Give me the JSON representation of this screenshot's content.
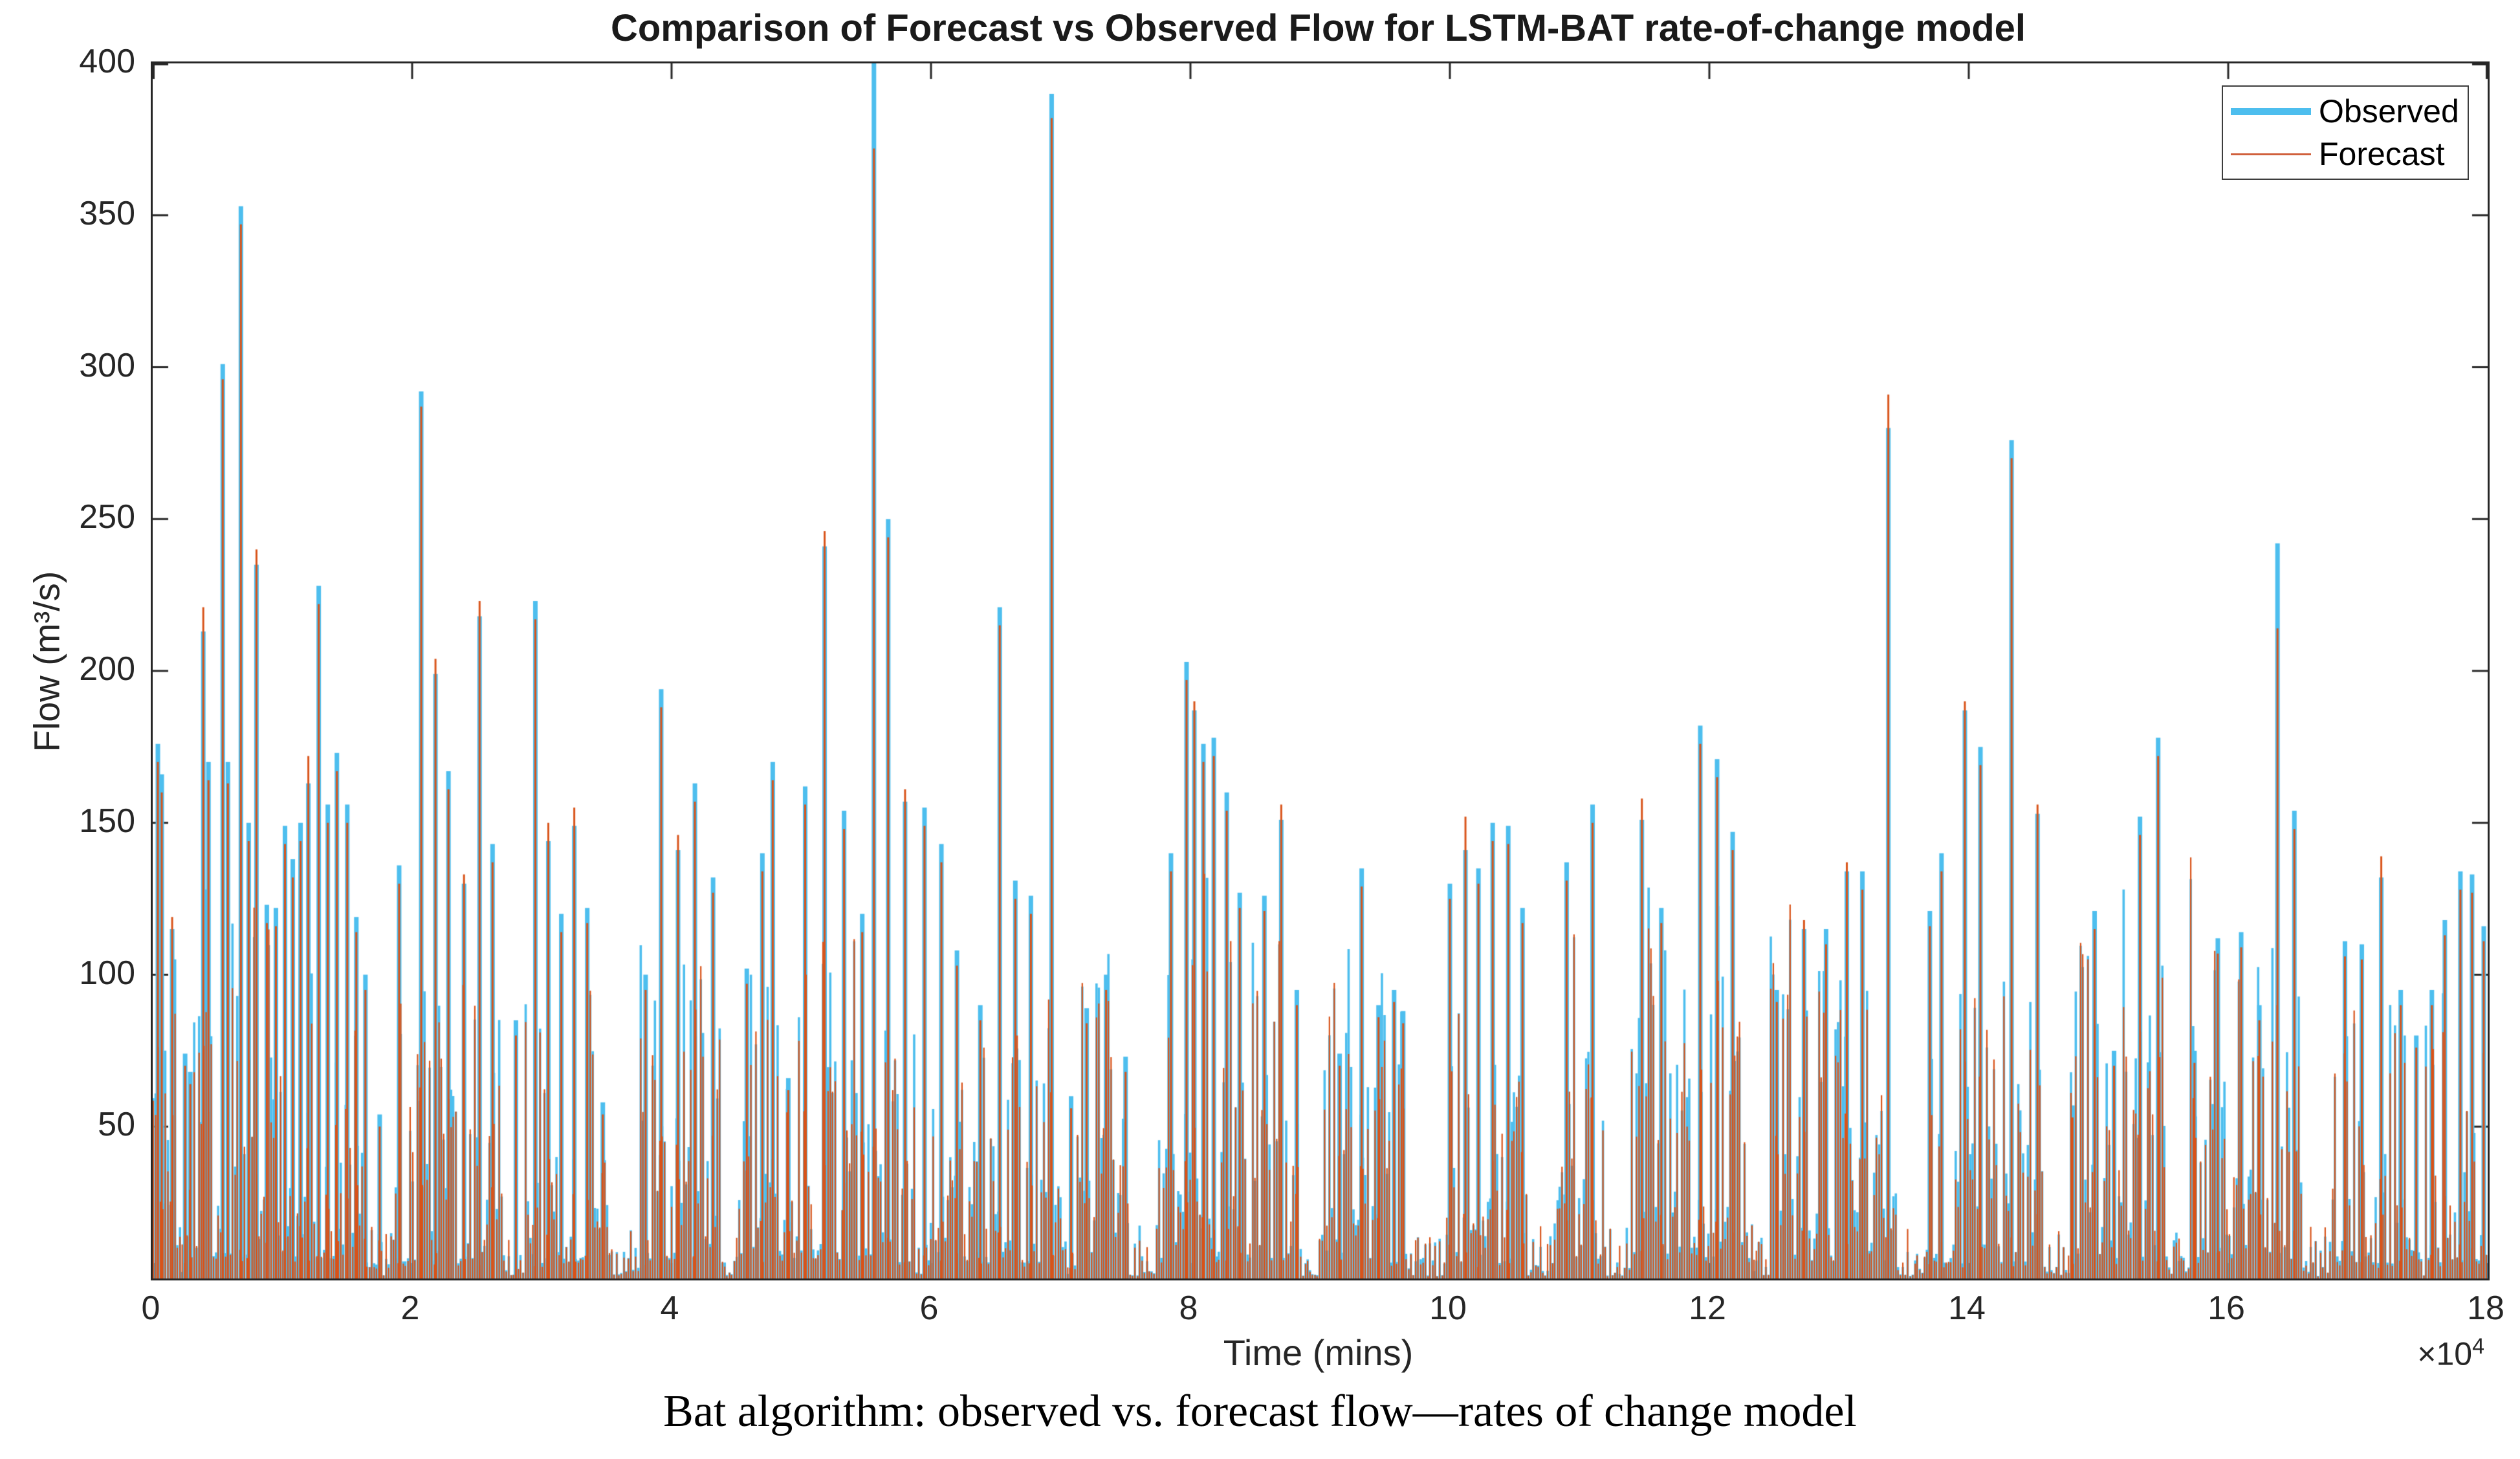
{
  "figure": {
    "caption": "Bat algorithm: observed vs. forecast flow—rates of change model"
  },
  "chart_data": {
    "type": "line",
    "title": "Comparison of Forecast vs Observed Flow for LSTM-BAT rate-of-change model",
    "xlabel": "Time (mins)",
    "ylabel": "Flow (m³/s)",
    "x_scale_base": "×10",
    "x_scale_exp": "4",
    "xlim": [
      0,
      18
    ],
    "ylim": [
      0,
      400
    ],
    "xticks": [
      0,
      2,
      4,
      6,
      8,
      10,
      12,
      14,
      16,
      18
    ],
    "yticks": [
      50,
      100,
      150,
      200,
      250,
      300,
      350,
      400
    ],
    "grid": false,
    "legend_position": "top-right",
    "legend": [
      {
        "label": "Observed",
        "color": "#4DBEEE",
        "style": "thick"
      },
      {
        "label": "Forecast",
        "color": "#D95319",
        "style": "thin"
      }
    ],
    "axis_color": "#262626",
    "series_colors": {
      "observed": "#4DBEEE",
      "forecast": "#D95319"
    },
    "x_units_note": "x values are in 10^4 minutes",
    "spikes_x_obs_fcst": [
      [
        0.04,
        176,
        170
      ],
      [
        0.07,
        166,
        160
      ],
      [
        0.15,
        115,
        119
      ],
      [
        0.25,
        74,
        70
      ],
      [
        0.29,
        68,
        64
      ],
      [
        0.39,
        213,
        221
      ],
      [
        0.43,
        170,
        164
      ],
      [
        0.54,
        301,
        296
      ],
      [
        0.58,
        170,
        163
      ],
      [
        0.68,
        353,
        347
      ],
      [
        0.74,
        150,
        144
      ],
      [
        0.8,
        235,
        240
      ],
      [
        0.88,
        123,
        117
      ],
      [
        0.95,
        122,
        116
      ],
      [
        1.02,
        149,
        143
      ],
      [
        1.08,
        138,
        132
      ],
      [
        1.14,
        150,
        144
      ],
      [
        1.2,
        163,
        172
      ],
      [
        1.28,
        228,
        222
      ],
      [
        1.35,
        156,
        150
      ],
      [
        1.42,
        173,
        167
      ],
      [
        1.5,
        156,
        150
      ],
      [
        1.57,
        119,
        114
      ],
      [
        1.64,
        100,
        95
      ],
      [
        1.75,
        54,
        50
      ],
      [
        1.9,
        136,
        130
      ],
      [
        2.07,
        292,
        287
      ],
      [
        2.18,
        199,
        204
      ],
      [
        2.28,
        167,
        161
      ],
      [
        2.4,
        130,
        133
      ],
      [
        2.52,
        218,
        223
      ],
      [
        2.62,
        143,
        137
      ],
      [
        2.8,
        85,
        80
      ],
      [
        2.95,
        223,
        217
      ],
      [
        3.05,
        144,
        150
      ],
      [
        3.15,
        120,
        114
      ],
      [
        3.25,
        149,
        155
      ],
      [
        3.35,
        122,
        117
      ],
      [
        3.47,
        58,
        54
      ],
      [
        3.8,
        100,
        95
      ],
      [
        3.92,
        194,
        188
      ],
      [
        4.05,
        141,
        146
      ],
      [
        4.18,
        163,
        157
      ],
      [
        4.32,
        132,
        127
      ],
      [
        4.58,
        102,
        97
      ],
      [
        4.7,
        140,
        134
      ],
      [
        4.78,
        170,
        164
      ],
      [
        4.9,
        66,
        62
      ],
      [
        5.03,
        162,
        156
      ],
      [
        5.18,
        241,
        246
      ],
      [
        5.33,
        154,
        148
      ],
      [
        5.47,
        120,
        114
      ],
      [
        5.56,
        400,
        372
      ],
      [
        5.67,
        250,
        244
      ],
      [
        5.8,
        157,
        161
      ],
      [
        5.95,
        155,
        149
      ],
      [
        6.08,
        143,
        137
      ],
      [
        6.2,
        108,
        103
      ],
      [
        6.38,
        90,
        85
      ],
      [
        6.53,
        221,
        215
      ],
      [
        6.65,
        131,
        125
      ],
      [
        6.77,
        126,
        120
      ],
      [
        6.93,
        390,
        382
      ],
      [
        7.08,
        60,
        56
      ],
      [
        7.2,
        89,
        84
      ],
      [
        7.35,
        100,
        95
      ],
      [
        7.5,
        73,
        68
      ],
      [
        7.85,
        140,
        134
      ],
      [
        7.97,
        203,
        197
      ],
      [
        8.03,
        187,
        190
      ],
      [
        8.1,
        176,
        170
      ],
      [
        8.18,
        178,
        172
      ],
      [
        8.28,
        160,
        154
      ],
      [
        8.38,
        127,
        122
      ],
      [
        8.57,
        126,
        121
      ],
      [
        8.7,
        151,
        156
      ],
      [
        8.82,
        95,
        90
      ],
      [
        9.15,
        74,
        70
      ],
      [
        9.32,
        135,
        129
      ],
      [
        9.45,
        90,
        86
      ],
      [
        9.57,
        95,
        91
      ],
      [
        9.64,
        88,
        84
      ],
      [
        10.0,
        130,
        125
      ],
      [
        10.12,
        141,
        152
      ],
      [
        10.22,
        135,
        130
      ],
      [
        10.33,
        150,
        144
      ],
      [
        10.45,
        149,
        143
      ],
      [
        10.56,
        122,
        117
      ],
      [
        10.9,
        137,
        131
      ],
      [
        11.1,
        156,
        150
      ],
      [
        11.48,
        151,
        158
      ],
      [
        11.63,
        122,
        117
      ],
      [
        11.93,
        182,
        176
      ],
      [
        12.06,
        171,
        165
      ],
      [
        12.18,
        147,
        141
      ],
      [
        12.52,
        95,
        91
      ],
      [
        12.73,
        115,
        118
      ],
      [
        12.9,
        115,
        110
      ],
      [
        13.06,
        134,
        137
      ],
      [
        13.18,
        134,
        128
      ],
      [
        13.38,
        280,
        291
      ],
      [
        13.7,
        121,
        116
      ],
      [
        13.79,
        140,
        134
      ],
      [
        13.97,
        187,
        190
      ],
      [
        14.09,
        175,
        169
      ],
      [
        14.33,
        276,
        270
      ],
      [
        14.53,
        153,
        156
      ],
      [
        14.8,
        57,
        53
      ],
      [
        14.97,
        121,
        115
      ],
      [
        15.12,
        75,
        70
      ],
      [
        15.32,
        152,
        146
      ],
      [
        15.46,
        178,
        172
      ],
      [
        15.74,
        75,
        71
      ],
      [
        15.92,
        112,
        107
      ],
      [
        16.1,
        114,
        109
      ],
      [
        16.24,
        90,
        85
      ],
      [
        16.38,
        242,
        214
      ],
      [
        16.51,
        154,
        148
      ],
      [
        16.9,
        111,
        106
      ],
      [
        17.03,
        110,
        105
      ],
      [
        17.18,
        132,
        139
      ],
      [
        17.33,
        95,
        90
      ],
      [
        17.45,
        80,
        76
      ],
      [
        17.57,
        95,
        90
      ],
      [
        17.67,
        118,
        113
      ],
      [
        17.79,
        134,
        128
      ],
      [
        17.88,
        133,
        127
      ],
      [
        17.97,
        116,
        111
      ]
    ],
    "background_texture": {
      "seed": 20240613,
      "step_x": 0.0185,
      "base_height_max": 132,
      "forecast_ratio_min": 0.68,
      "forecast_ratio_span": 0.4,
      "overshoot_prob": 0.1,
      "gap_zones": [
        [
          0.18,
          0.24
        ],
        [
          1.62,
          1.84
        ],
        [
          2.7,
          2.87
        ],
        [
          3.55,
          3.76
        ],
        [
          4.38,
          4.52
        ],
        [
          5.88,
          5.99
        ],
        [
          7.0,
          7.12
        ],
        [
          7.52,
          7.74
        ],
        [
          8.85,
          9.03
        ],
        [
          9.66,
          9.95
        ],
        [
          10.6,
          10.8
        ],
        [
          11.18,
          11.4
        ],
        [
          12.28,
          12.47
        ],
        [
          13.45,
          13.65
        ],
        [
          14.58,
          14.77
        ],
        [
          15.53,
          15.7
        ],
        [
          16.57,
          16.79
        ],
        [
          17.38,
          17.52
        ]
      ]
    }
  }
}
